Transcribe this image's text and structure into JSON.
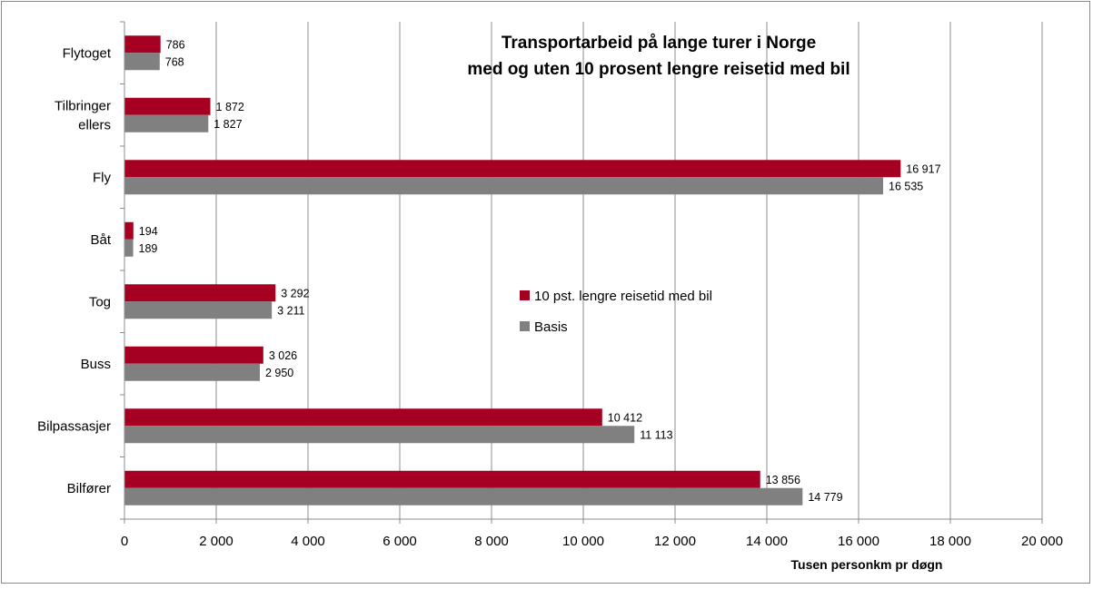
{
  "chart_data": {
    "type": "bar",
    "orientation": "horizontal",
    "title_lines": [
      "Transportarbeid på lange turer i Norge",
      "med og uten 10 prosent lengre reisetid med bil"
    ],
    "xlabel": "Tusen personkm pr døgn",
    "ylabel": "",
    "xlim": [
      0,
      20000
    ],
    "x_ticks": [
      0,
      2000,
      4000,
      6000,
      8000,
      10000,
      12000,
      14000,
      16000,
      18000,
      20000
    ],
    "x_tick_labels": [
      "0",
      "2 000",
      "4 000",
      "6 000",
      "8 000",
      "10 000",
      "12 000",
      "14 000",
      "16 000",
      "18 000",
      "20 000"
    ],
    "grid": "vertical",
    "legend_position": "center-right",
    "categories": [
      [
        "Flytoget"
      ],
      [
        "Tilbringer",
        "ellers"
      ],
      [
        "Fly"
      ],
      [
        "Båt"
      ],
      [
        "Tog"
      ],
      [
        "Buss"
      ],
      [
        "Bilpassasjer"
      ],
      [
        "Bilfører"
      ]
    ],
    "series": [
      {
        "name": "10 pst. lengre reisetid med bil",
        "color": "#A50021",
        "values": [
          786,
          1872,
          16917,
          194,
          3292,
          3026,
          10412,
          13856
        ],
        "labels": [
          "786",
          "1 872",
          "16 917",
          "194",
          "3 292",
          "3 026",
          "10 412",
          "13 856"
        ]
      },
      {
        "name": "Basis",
        "color": "#808080",
        "values": [
          768,
          1827,
          16535,
          189,
          3211,
          2950,
          11113,
          14779
        ],
        "labels": [
          "768",
          "1 827",
          "16 535",
          "189",
          "3 211",
          "2 950",
          "11 113",
          "14 779"
        ]
      }
    ]
  }
}
